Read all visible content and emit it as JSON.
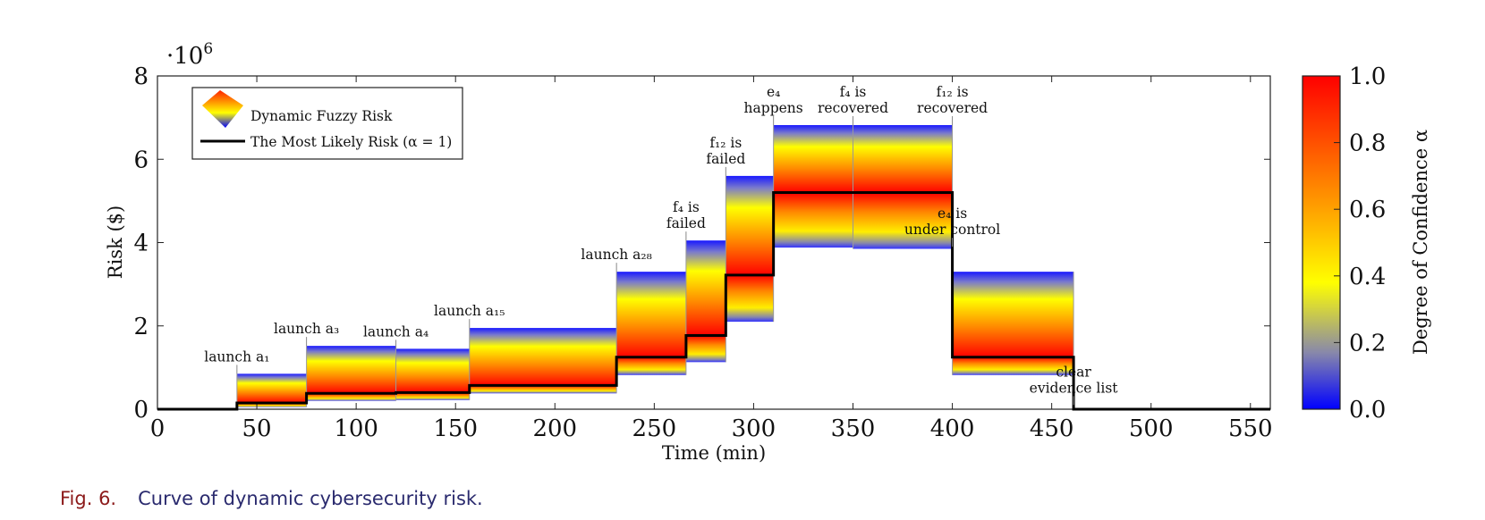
{
  "caption": {
    "label": "Fig. 6.",
    "text": "Curve of dynamic cybersecurity risk."
  },
  "colors": {
    "low": "#1a1aff",
    "mid": "#ffff00",
    "high": "#ff0000",
    "line": "#000000"
  },
  "chart_data": {
    "type": "area",
    "xlabel": "Time (min)",
    "ylabel": "Risk ($)",
    "y_multiplier": "·10^6",
    "xlim": [
      0,
      560
    ],
    "ylim": [
      0,
      8
    ],
    "xticks": [
      0,
      50,
      100,
      150,
      200,
      250,
      300,
      350,
      400,
      450,
      500,
      550
    ],
    "yticks": [
      0,
      2,
      4,
      6,
      8
    ],
    "legend": {
      "placement": "top-left",
      "entries": [
        "Dynamic Fuzzy Risk",
        "The Most Likely Risk (α = 1)"
      ]
    },
    "colorbar": {
      "label": "Degree of Confidence α",
      "ticks": [
        "0.0",
        "0.2",
        "0.4",
        "0.6",
        "0.8",
        "1.0"
      ]
    },
    "segments": [
      {
        "x0": 0,
        "x1": 40,
        "low": 0,
        "likely": 0,
        "high": 0
      },
      {
        "x0": 40,
        "x1": 75,
        "low": 0.05,
        "likely": 0.15,
        "high": 0.85
      },
      {
        "x0": 75,
        "x1": 120,
        "low": 0.2,
        "likely": 0.38,
        "high": 1.52
      },
      {
        "x0": 120,
        "x1": 157,
        "low": 0.22,
        "likely": 0.4,
        "high": 1.45
      },
      {
        "x0": 157,
        "x1": 231,
        "low": 0.38,
        "likely": 0.57,
        "high": 1.95
      },
      {
        "x0": 231,
        "x1": 266,
        "low": 0.82,
        "likely": 1.25,
        "high": 3.3
      },
      {
        "x0": 266,
        "x1": 286,
        "low": 1.13,
        "likely": 1.77,
        "high": 4.05
      },
      {
        "x0": 286,
        "x1": 310,
        "low": 2.1,
        "likely": 3.22,
        "high": 5.6
      },
      {
        "x0": 310,
        "x1": 350,
        "low": 3.88,
        "likely": 5.2,
        "high": 6.82
      },
      {
        "x0": 350,
        "x1": 400,
        "low": 3.85,
        "likely": 5.2,
        "high": 6.82
      },
      {
        "x0": 400,
        "x1": 461,
        "low": 0.82,
        "likely": 1.25,
        "high": 3.3
      },
      {
        "x0": 461,
        "x1": 560,
        "low": 0,
        "likely": 0,
        "high": 0
      }
    ],
    "annotations": [
      {
        "x": 40,
        "y": 0.85,
        "lines": [
          "launch a₁"
        ]
      },
      {
        "x": 75,
        "y": 1.52,
        "lines": [
          "launch a₃"
        ]
      },
      {
        "x": 120,
        "y": 1.45,
        "lines": [
          "launch a₄"
        ]
      },
      {
        "x": 157,
        "y": 1.95,
        "lines": [
          "launch a₁₅"
        ]
      },
      {
        "x": 231,
        "y": 3.3,
        "lines": [
          "launch a₂₈"
        ]
      },
      {
        "x": 266,
        "y": 4.05,
        "lines": [
          "f₄ is",
          "failed"
        ]
      },
      {
        "x": 286,
        "y": 5.6,
        "lines": [
          "f₁₂ is",
          "failed"
        ]
      },
      {
        "x": 310,
        "y": 6.82,
        "lines": [
          "e₄",
          "happens"
        ]
      },
      {
        "x": 350,
        "y": 6.82,
        "lines": [
          "f₄ is",
          "recovered"
        ]
      },
      {
        "x": 400,
        "y": 6.82,
        "lines": [
          "f₁₂ is",
          "recovered"
        ]
      },
      {
        "x": 400,
        "y": 3.9,
        "lines": [
          "e₄ is",
          "under control"
        ]
      },
      {
        "x": 461,
        "y": 0.1,
        "lines": [
          "clear",
          "evidence list"
        ]
      }
    ]
  }
}
